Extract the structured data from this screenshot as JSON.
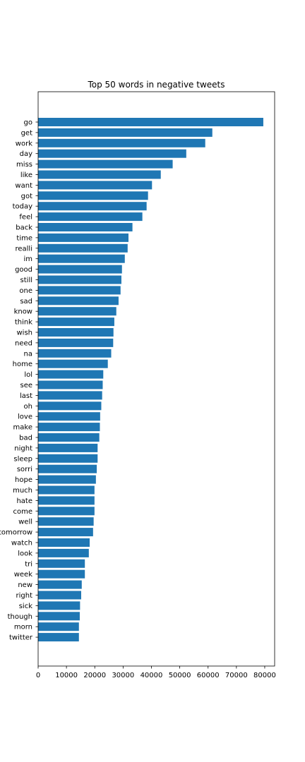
{
  "chart_data": {
    "type": "bar",
    "orientation": "horizontal",
    "title": "Top 50 words in negative tweets",
    "xlabel": "",
    "ylabel": "",
    "xlim": [
      0,
      83500
    ],
    "xticks": [
      0,
      10000,
      20000,
      30000,
      40000,
      50000,
      60000,
      70000,
      80000
    ],
    "grid": false,
    "bar_color": "#1f77b4",
    "categories": [
      "go",
      "get",
      "work",
      "day",
      "miss",
      "like",
      "want",
      "got",
      "today",
      "feel",
      "back",
      "time",
      "realli",
      "im",
      "good",
      "still",
      "one",
      "sad",
      "know",
      "think",
      "wish",
      "need",
      "na",
      "home",
      "lol",
      "see",
      "last",
      "oh",
      "love",
      "make",
      "bad",
      "night",
      "sleep",
      "sorri",
      "hope",
      "much",
      "hate",
      "come",
      "well",
      "tomorrow",
      "watch",
      "look",
      "tri",
      "week",
      "new",
      "right",
      "sick",
      "though",
      "morn",
      "twitter"
    ],
    "values": [
      79500,
      61500,
      59000,
      52300,
      47500,
      43300,
      40200,
      38800,
      38300,
      36800,
      33300,
      31900,
      31600,
      30600,
      29600,
      29400,
      29100,
      28400,
      27600,
      26900,
      26600,
      26500,
      25800,
      24600,
      23000,
      22800,
      22600,
      22300,
      21900,
      21800,
      21600,
      21000,
      21000,
      20700,
      20400,
      19900,
      19900,
      19900,
      19600,
      19400,
      18200,
      17900,
      16500,
      16500,
      15400,
      15200,
      14800,
      14700,
      14400,
      14400
    ]
  }
}
